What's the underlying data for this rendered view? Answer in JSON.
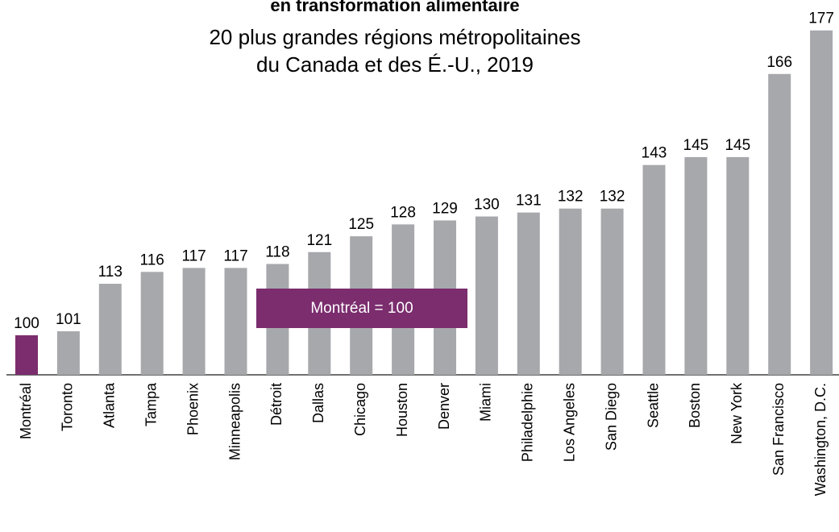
{
  "chart_data": {
    "type": "bar",
    "title": "en transformation alimentaire",
    "subtitle": [
      "20 plus grandes régions métropolitaines",
      "du Canada et des É.-U., 2019"
    ],
    "annotation": "Montréal = 100",
    "categories": [
      "Montréal",
      "Toronto",
      "Atlanta",
      "Tampa",
      "Phoenix",
      "Minneapolis",
      "Détroit",
      "Dallas",
      "Chicago",
      "Houston",
      "Denver",
      "Miami",
      "Philadelphie",
      "Los Angeles",
      "San Diego",
      "Seattle",
      "Boston",
      "New York",
      "San Francisco",
      "Washington, D.C."
    ],
    "values": [
      100,
      101,
      113,
      116,
      117,
      117,
      118,
      121,
      125,
      128,
      129,
      130,
      131,
      132,
      132,
      143,
      145,
      145,
      166,
      177
    ],
    "colors": [
      "#7b2d6e",
      "#a7a8ac",
      "#a7a8ac",
      "#a7a8ac",
      "#a7a8ac",
      "#a7a8ac",
      "#a7a8ac",
      "#a7a8ac",
      "#a7a8ac",
      "#a7a8ac",
      "#a7a8ac",
      "#a7a8ac",
      "#a7a8ac",
      "#a7a8ac",
      "#a7a8ac",
      "#a7a8ac",
      "#a7a8ac",
      "#a7a8ac",
      "#a7a8ac",
      "#a7a8ac"
    ],
    "annotation_color": "#7b2d6e",
    "ylim": [
      90,
      180
    ]
  }
}
